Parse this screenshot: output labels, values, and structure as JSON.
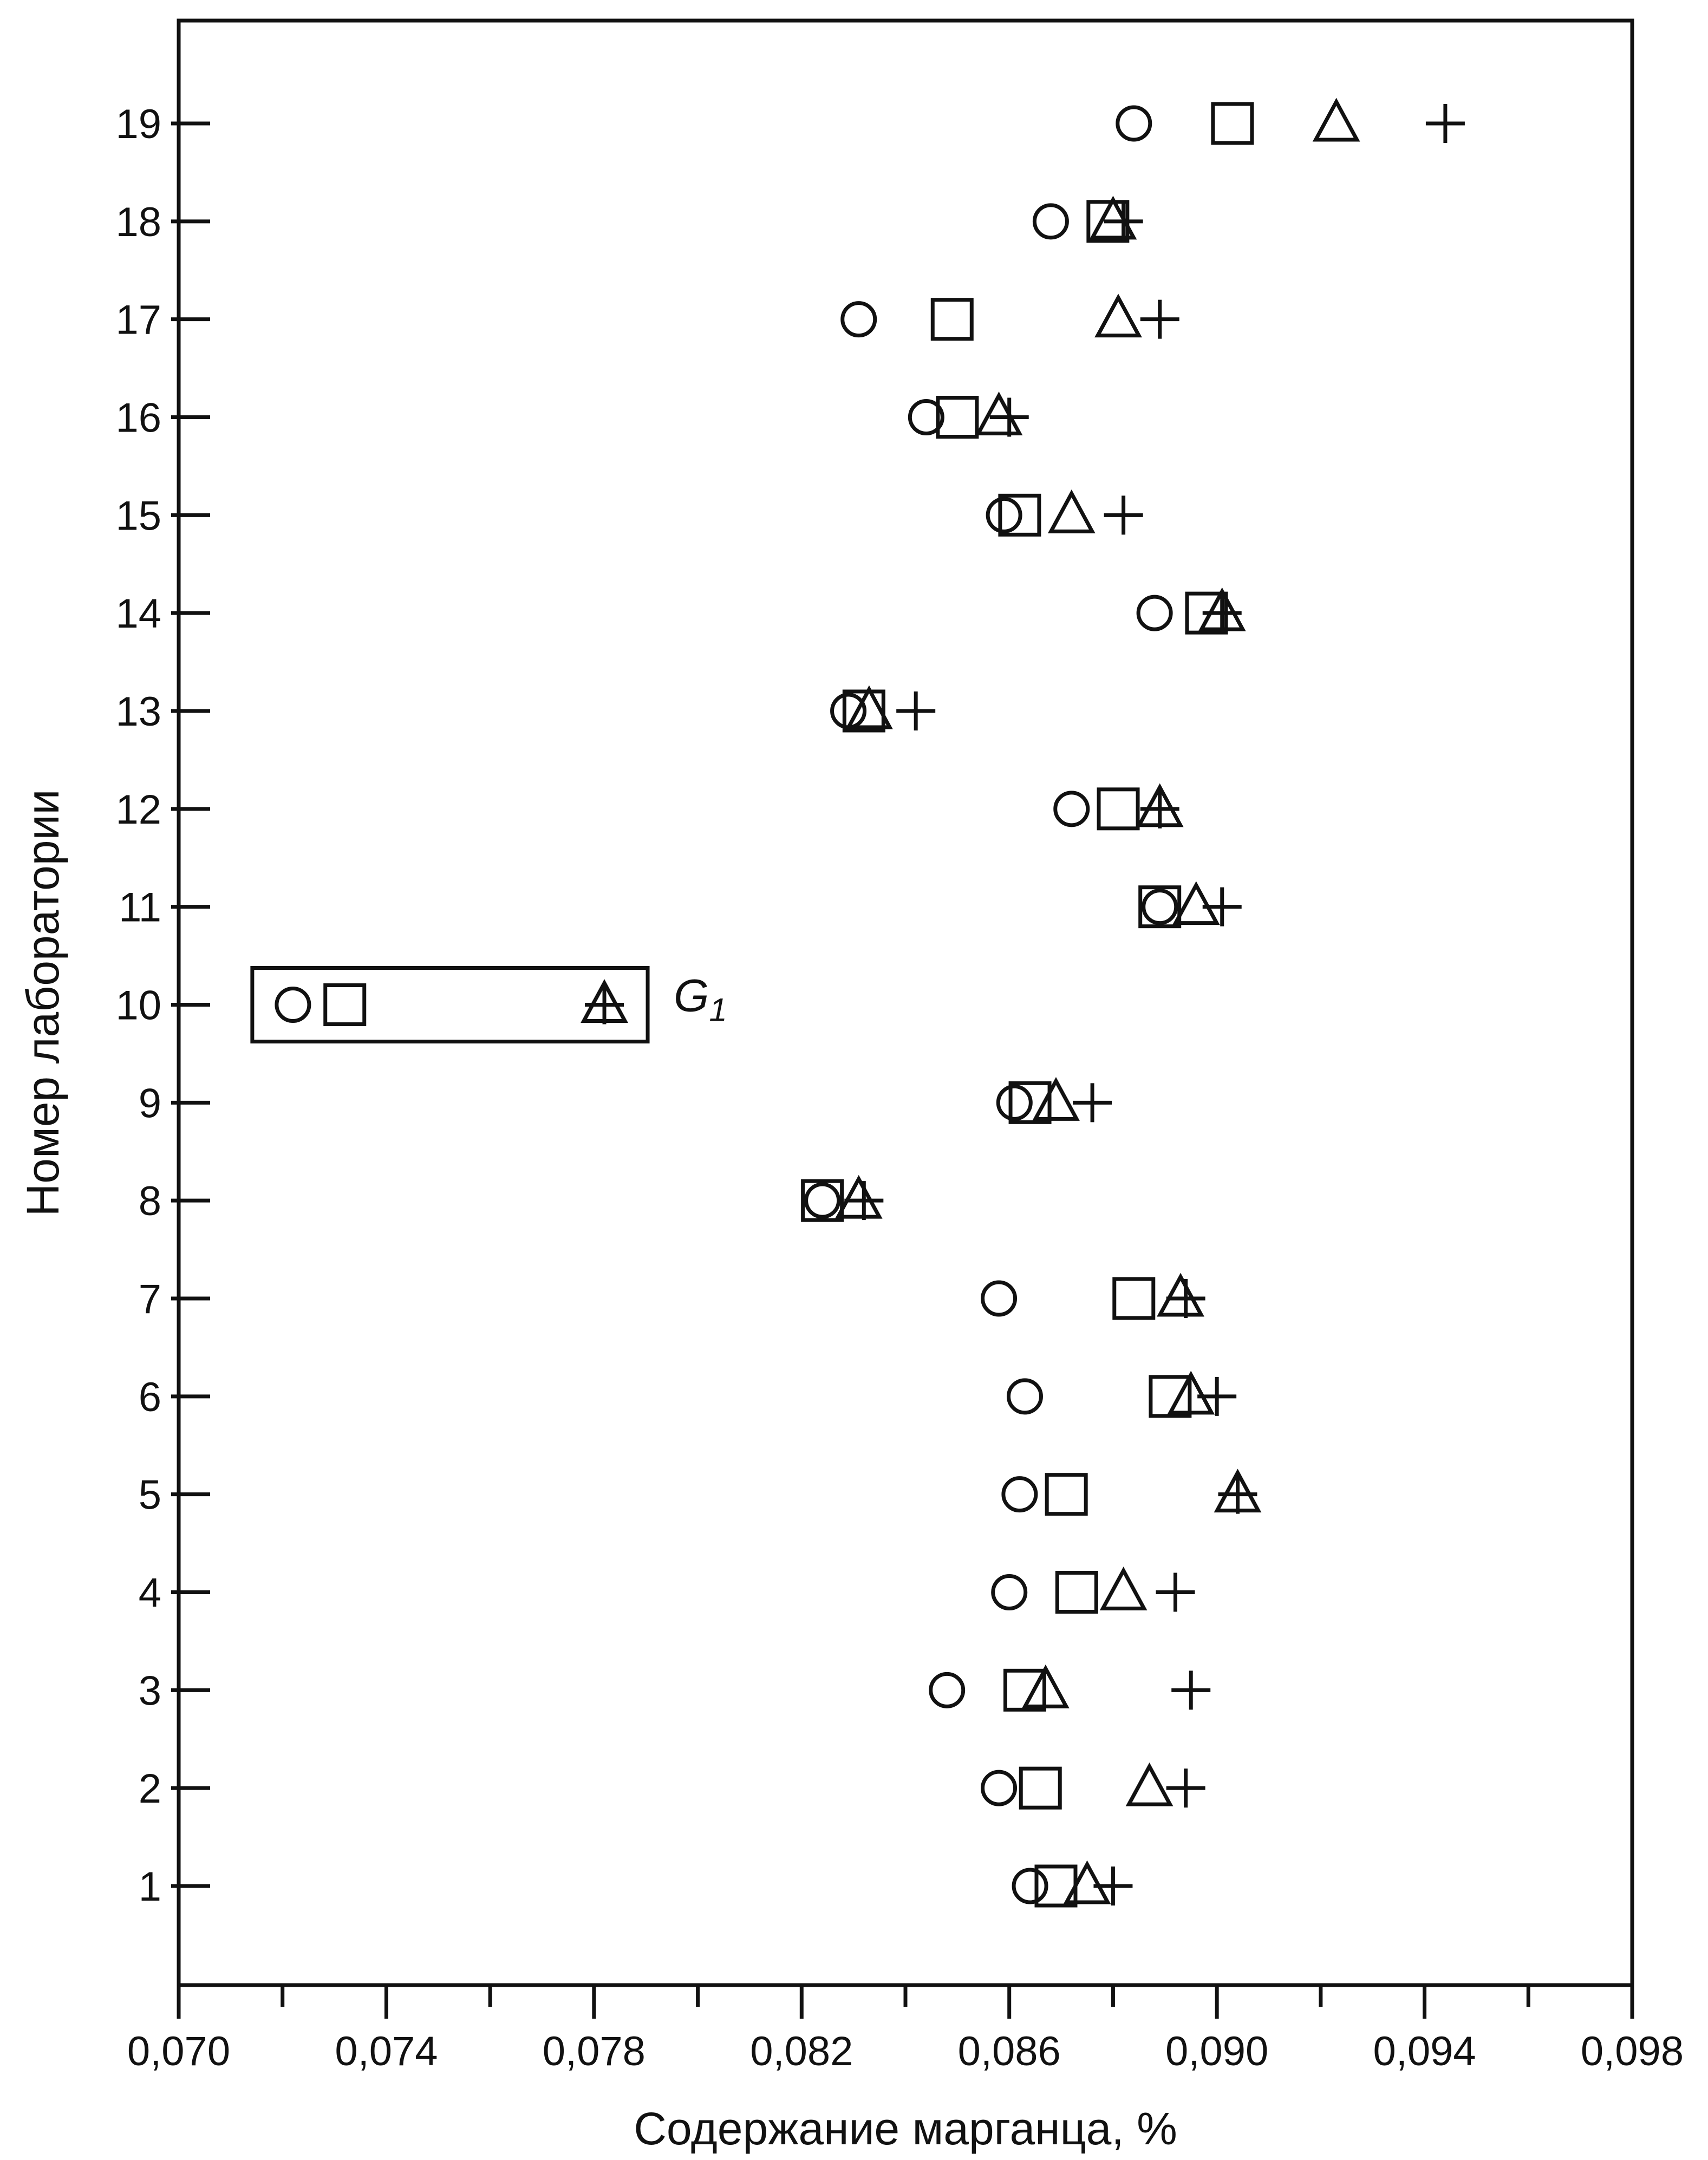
{
  "chart_data": {
    "type": "scatter",
    "xlabel": "Содержание марганца, %",
    "ylabel": "Номер лаборатории",
    "xlim": [
      0.07,
      0.098
    ],
    "ylim": [
      0,
      20
    ],
    "x_tick_labels": [
      "0,070",
      "0,074",
      "0,078",
      "0,082",
      "0,086",
      "0,090",
      "0,094",
      "0,098"
    ],
    "x_ticks": [
      0.07,
      0.074,
      0.078,
      0.082,
      0.086,
      0.09,
      0.094,
      0.098
    ],
    "y_ticks": [
      1,
      2,
      3,
      4,
      5,
      6,
      7,
      8,
      9,
      10,
      11,
      12,
      13,
      14,
      15,
      16,
      17,
      18,
      19
    ],
    "y_tick_labels": [
      "1",
      "2",
      "3",
      "4",
      "5",
      "6",
      "7",
      "8",
      "9",
      "10",
      "11",
      "12",
      "13",
      "14",
      "15",
      "16",
      "17",
      "18",
      "19"
    ],
    "grid": false,
    "legend": "none",
    "annotation": {
      "text": "G",
      "subscript": "1",
      "target_lab": 10
    },
    "series": [
      {
        "marker": "circle",
        "values": [
          [
            0.0864,
            1
          ],
          [
            0.0858,
            2
          ],
          [
            0.0848,
            3
          ],
          [
            0.086,
            4
          ],
          [
            0.0862,
            5
          ],
          [
            0.0863,
            6
          ],
          [
            0.0858,
            7
          ],
          [
            0.0824,
            8
          ],
          [
            0.0861,
            9
          ],
          [
            0.0722,
            10
          ],
          [
            0.0889,
            11
          ],
          [
            0.0872,
            12
          ],
          [
            0.0829,
            13
          ],
          [
            0.0888,
            14
          ],
          [
            0.0859,
            15
          ],
          [
            0.0844,
            16
          ],
          [
            0.0831,
            17
          ],
          [
            0.0868,
            18
          ],
          [
            0.0884,
            19
          ]
        ]
      },
      {
        "marker": "square",
        "values": [
          [
            0.0869,
            1
          ],
          [
            0.0866,
            2
          ],
          [
            0.0863,
            3
          ],
          [
            0.0873,
            4
          ],
          [
            0.0871,
            5
          ],
          [
            0.0891,
            6
          ],
          [
            0.0884,
            7
          ],
          [
            0.0824,
            8
          ],
          [
            0.0864,
            9
          ],
          [
            0.0732,
            10
          ],
          [
            0.0889,
            11
          ],
          [
            0.0881,
            12
          ],
          [
            0.0832,
            13
          ],
          [
            0.0898,
            14
          ],
          [
            0.0862,
            15
          ],
          [
            0.085,
            16
          ],
          [
            0.0849,
            17
          ],
          [
            0.0879,
            18
          ],
          [
            0.0903,
            19
          ]
        ]
      },
      {
        "marker": "triangle",
        "values": [
          [
            0.0875,
            1
          ],
          [
            0.0887,
            2
          ],
          [
            0.0867,
            3
          ],
          [
            0.0882,
            4
          ],
          [
            0.0904,
            5
          ],
          [
            0.0895,
            6
          ],
          [
            0.0893,
            7
          ],
          [
            0.0831,
            8
          ],
          [
            0.0869,
            9
          ],
          [
            0.0782,
            10
          ],
          [
            0.0896,
            11
          ],
          [
            0.0889,
            12
          ],
          [
            0.0833,
            13
          ],
          [
            0.0901,
            14
          ],
          [
            0.0872,
            15
          ],
          [
            0.0858,
            16
          ],
          [
            0.0881,
            17
          ],
          [
            0.088,
            18
          ],
          [
            0.0923,
            19
          ]
        ]
      },
      {
        "marker": "plus",
        "values": [
          [
            0.088,
            1
          ],
          [
            0.0894,
            2
          ],
          [
            0.0895,
            3
          ],
          [
            0.0892,
            4
          ],
          [
            0.0904,
            5
          ],
          [
            0.09,
            6
          ],
          [
            0.0894,
            7
          ],
          [
            0.0832,
            8
          ],
          [
            0.0876,
            9
          ],
          [
            0.0782,
            10
          ],
          [
            0.0901,
            11
          ],
          [
            0.0889,
            12
          ],
          [
            0.0842,
            13
          ],
          [
            0.0901,
            14
          ],
          [
            0.0882,
            15
          ],
          [
            0.086,
            16
          ],
          [
            0.0889,
            17
          ],
          [
            0.0882,
            18
          ],
          [
            0.0944,
            19
          ]
        ]
      }
    ]
  }
}
